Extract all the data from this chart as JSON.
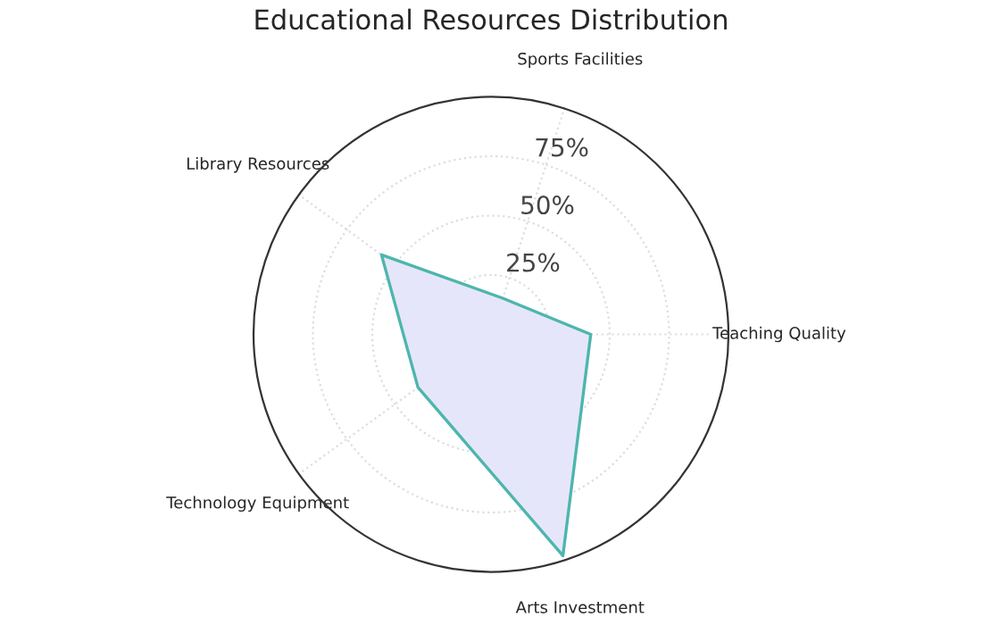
{
  "chart_data": {
    "type": "radar",
    "title": "Educational Resources Distribution",
    "categories": [
      "Sports Facilities",
      "Teaching Quality",
      "Arts Investment",
      "Technology Equipment",
      "Library Resources"
    ],
    "series": [
      {
        "color": "#4db6ac",
        "values": [
          16,
          42,
          98,
          38,
          57
        ]
      }
    ],
    "ylim": [
      0,
      100
    ],
    "yticks": [
      {
        "value": 25,
        "label": "25%"
      },
      {
        "value": 50,
        "label": "50%"
      },
      {
        "value": 75,
        "label": "75%"
      }
    ],
    "grid": true,
    "legend": false
  }
}
